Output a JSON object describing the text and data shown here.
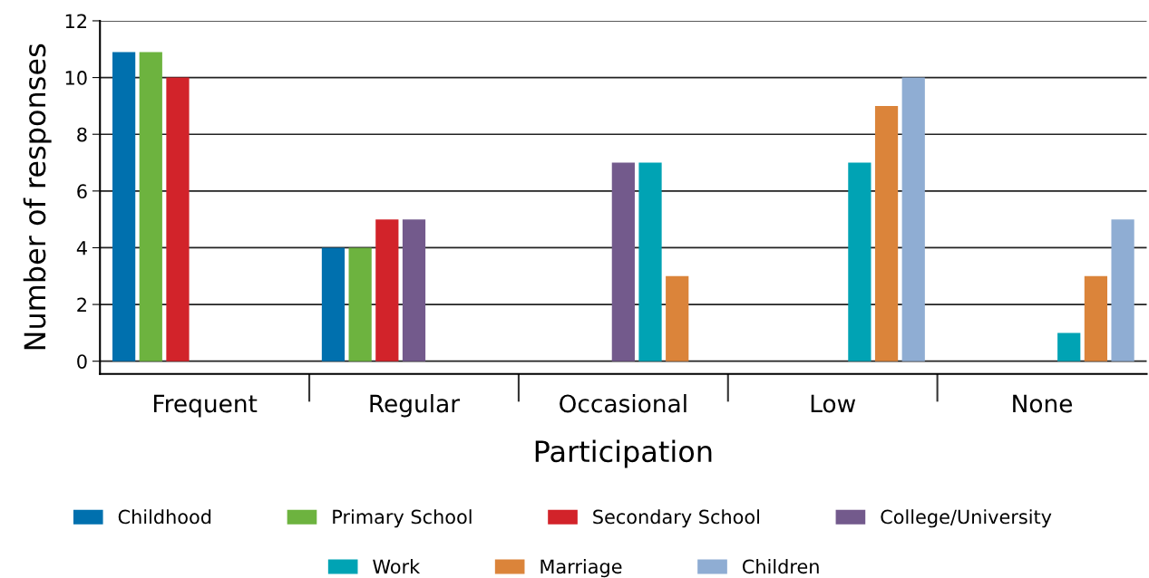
{
  "chart_data": {
    "type": "bar",
    "xlabel": "Participation",
    "ylabel": "Number of responses",
    "categories": [
      "Frequent",
      "Regular",
      "Occasional",
      "Low",
      "None"
    ],
    "series": [
      {
        "name": "Childhood",
        "color": "#0070ae",
        "values": [
          10.9,
          4,
          0,
          0,
          0
        ]
      },
      {
        "name": "Primary School",
        "color": "#6db33f",
        "values": [
          10.9,
          4,
          0,
          0,
          0
        ]
      },
      {
        "name": "Secondary School",
        "color": "#d2232a",
        "values": [
          10,
          5,
          0,
          0,
          0
        ]
      },
      {
        "name": "College/University",
        "color": "#735a8c",
        "values": [
          0,
          5,
          7,
          0,
          0
        ]
      },
      {
        "name": "Work",
        "color": "#00a3b4",
        "values": [
          0,
          0,
          7,
          7,
          1
        ]
      },
      {
        "name": "Marriage",
        "color": "#db843a",
        "values": [
          0,
          0,
          3,
          9,
          3
        ]
      },
      {
        "name": "Children",
        "color": "#8fadd3",
        "values": [
          0,
          0,
          0,
          10,
          5
        ]
      }
    ],
    "ylim": [
      -0.45,
      12
    ],
    "yticks": [
      0,
      2,
      4,
      6,
      8,
      10,
      12
    ],
    "grid": "y",
    "legend": "bottom"
  }
}
